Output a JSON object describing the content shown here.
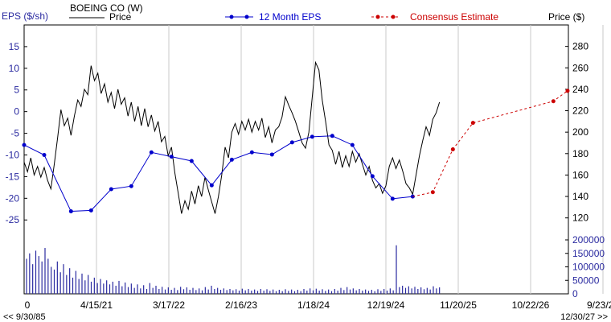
{
  "chart_data": {
    "type": "line",
    "title": "BOEING CO (W)",
    "legend": {
      "price_name": "Price",
      "eps_name": "12 Month EPS",
      "estimate_name": "Consensus Estimate",
      "position": "top"
    },
    "left_axis_label": "EPS ($/sh)",
    "right_axis_label": "Price ($)",
    "left_ticks": [
      "15",
      "10",
      "5",
      "0",
      "-5",
      "-10",
      "-15",
      "-20",
      "-25"
    ],
    "left_range": [
      -27,
      20
    ],
    "right_ticks": [
      "280",
      "260",
      "240",
      "220",
      "200",
      "180",
      "160",
      "140",
      "120"
    ],
    "right_range": [
      110,
      300
    ],
    "volume_ticks": [
      "200000",
      "150000",
      "100000",
      "50000",
      "0"
    ],
    "volume_range": [
      0,
      200000
    ],
    "x_ticks": [
      "0",
      "4/15/21",
      "3/17/22",
      "2/16/23",
      "1/18/24",
      "12/19/24",
      "11/20/25",
      "10/22/26",
      "9/23/27"
    ],
    "x_range_months": [
      0,
      81
    ],
    "x_start_label": "<< 9/30/85",
    "x_end_label": "12/30/27 >>",
    "colors": {
      "price": "#000000",
      "eps": "#0000cc",
      "estimate": "#cc0000",
      "volume": "#2a2aa0",
      "grid": "#c8c8c8"
    },
    "eps_series": {
      "name": "12 Month EPS",
      "points": [
        {
          "x": 0,
          "y": -7.7
        },
        {
          "x": 3,
          "y": -10.0
        },
        {
          "x": 7,
          "y": -23.0
        },
        {
          "x": 10,
          "y": -22.8
        },
        {
          "x": 13,
          "y": -17.9
        },
        {
          "x": 16,
          "y": -17.2
        },
        {
          "x": 19,
          "y": -9.4
        },
        {
          "x": 22,
          "y": -10.4
        },
        {
          "x": 25,
          "y": -11.4
        },
        {
          "x": 28,
          "y": -17.0
        },
        {
          "x": 31,
          "y": -11.1
        },
        {
          "x": 34,
          "y": -9.4
        },
        {
          "x": 37,
          "y": -9.9
        },
        {
          "x": 40,
          "y": -7.1
        },
        {
          "x": 43,
          "y": -5.8
        },
        {
          "x": 46,
          "y": -5.6
        },
        {
          "x": 49,
          "y": -7.7
        },
        {
          "x": 52,
          "y": -14.9
        },
        {
          "x": 55,
          "y": -20.1
        },
        {
          "x": 58,
          "y": -19.6
        }
      ]
    },
    "estimate_series": {
      "name": "Consensus Estimate",
      "points": [
        {
          "x": 58,
          "y": -19.6
        },
        {
          "x": 61,
          "y": -18.6
        },
        {
          "x": 64,
          "y": -8.7
        },
        {
          "x": 67,
          "y": -2.6
        },
        {
          "x": 79,
          "y": 2.4
        },
        {
          "x": 91,
          "y": 4.8
        }
      ]
    },
    "price_series": {
      "name": "Price",
      "points": [
        {
          "x": 0,
          "y": 172
        },
        {
          "x": 0.5,
          "y": 163
        },
        {
          "x": 1,
          "y": 176
        },
        {
          "x": 1.5,
          "y": 160
        },
        {
          "x": 2,
          "y": 168
        },
        {
          "x": 2.5,
          "y": 158
        },
        {
          "x": 3,
          "y": 167
        },
        {
          "x": 3.5,
          "y": 155
        },
        {
          "x": 4,
          "y": 147
        },
        {
          "x": 4.5,
          "y": 170
        },
        {
          "x": 5,
          "y": 195
        },
        {
          "x": 5.5,
          "y": 221
        },
        {
          "x": 6,
          "y": 206
        },
        {
          "x": 6.5,
          "y": 213
        },
        {
          "x": 7,
          "y": 197
        },
        {
          "x": 7.5,
          "y": 215
        },
        {
          "x": 8,
          "y": 230
        },
        {
          "x": 8.5,
          "y": 224
        },
        {
          "x": 9,
          "y": 240
        },
        {
          "x": 9.5,
          "y": 235
        },
        {
          "x": 10,
          "y": 262
        },
        {
          "x": 10.5,
          "y": 248
        },
        {
          "x": 11,
          "y": 255
        },
        {
          "x": 11.5,
          "y": 236
        },
        {
          "x": 12,
          "y": 245
        },
        {
          "x": 12.5,
          "y": 228
        },
        {
          "x": 13,
          "y": 237
        },
        {
          "x": 13.5,
          "y": 222
        },
        {
          "x": 14,
          "y": 240
        },
        {
          "x": 14.5,
          "y": 226
        },
        {
          "x": 15,
          "y": 232
        },
        {
          "x": 15.5,
          "y": 215
        },
        {
          "x": 16,
          "y": 228
        },
        {
          "x": 16.5,
          "y": 210
        },
        {
          "x": 17,
          "y": 224
        },
        {
          "x": 17.5,
          "y": 206
        },
        {
          "x": 18,
          "y": 222
        },
        {
          "x": 18.5,
          "y": 205
        },
        {
          "x": 19,
          "y": 216
        },
        {
          "x": 19.5,
          "y": 201
        },
        {
          "x": 20,
          "y": 210
        },
        {
          "x": 20.5,
          "y": 191
        },
        {
          "x": 21,
          "y": 196
        },
        {
          "x": 21.5,
          "y": 178
        },
        {
          "x": 22,
          "y": 186
        },
        {
          "x": 22.5,
          "y": 162
        },
        {
          "x": 23,
          "y": 143
        },
        {
          "x": 23.5,
          "y": 124
        },
        {
          "x": 24,
          "y": 136
        },
        {
          "x": 24.5,
          "y": 128
        },
        {
          "x": 25,
          "y": 145
        },
        {
          "x": 25.5,
          "y": 133
        },
        {
          "x": 26,
          "y": 150
        },
        {
          "x": 26.5,
          "y": 140
        },
        {
          "x": 27,
          "y": 158
        },
        {
          "x": 27.5,
          "y": 146
        },
        {
          "x": 28,
          "y": 135
        },
        {
          "x": 28.5,
          "y": 124
        },
        {
          "x": 29,
          "y": 140
        },
        {
          "x": 29.5,
          "y": 160
        },
        {
          "x": 30,
          "y": 186
        },
        {
          "x": 30.5,
          "y": 176
        },
        {
          "x": 31,
          "y": 200
        },
        {
          "x": 31.5,
          "y": 208
        },
        {
          "x": 32,
          "y": 198
        },
        {
          "x": 32.5,
          "y": 210
        },
        {
          "x": 33,
          "y": 202
        },
        {
          "x": 33.5,
          "y": 212
        },
        {
          "x": 34,
          "y": 200
        },
        {
          "x": 34.5,
          "y": 210
        },
        {
          "x": 35,
          "y": 202
        },
        {
          "x": 35.5,
          "y": 213
        },
        {
          "x": 36,
          "y": 195
        },
        {
          "x": 36.5,
          "y": 205
        },
        {
          "x": 37,
          "y": 190
        },
        {
          "x": 37.5,
          "y": 202
        },
        {
          "x": 38,
          "y": 205
        },
        {
          "x": 38.5,
          "y": 214
        },
        {
          "x": 39,
          "y": 233
        },
        {
          "x": 39.5,
          "y": 225
        },
        {
          "x": 40,
          "y": 218
        },
        {
          "x": 40.5,
          "y": 210
        },
        {
          "x": 41,
          "y": 200
        },
        {
          "x": 41.5,
          "y": 190
        },
        {
          "x": 42,
          "y": 185
        },
        {
          "x": 42.5,
          "y": 200
        },
        {
          "x": 43,
          "y": 232
        },
        {
          "x": 43.5,
          "y": 265
        },
        {
          "x": 44,
          "y": 258
        },
        {
          "x": 44.5,
          "y": 230
        },
        {
          "x": 45,
          "y": 210
        },
        {
          "x": 45.5,
          "y": 188
        },
        {
          "x": 46,
          "y": 183
        },
        {
          "x": 46.5,
          "y": 170
        },
        {
          "x": 47,
          "y": 182
        },
        {
          "x": 47.5,
          "y": 167
        },
        {
          "x": 48,
          "y": 178
        },
        {
          "x": 48.5,
          "y": 168
        },
        {
          "x": 49,
          "y": 182
        },
        {
          "x": 49.5,
          "y": 172
        },
        {
          "x": 50,
          "y": 180
        },
        {
          "x": 50.5,
          "y": 170
        },
        {
          "x": 51,
          "y": 160
        },
        {
          "x": 51.5,
          "y": 168
        },
        {
          "x": 52,
          "y": 155
        },
        {
          "x": 52.5,
          "y": 148
        },
        {
          "x": 53,
          "y": 152
        },
        {
          "x": 53.5,
          "y": 143
        },
        {
          "x": 54,
          "y": 150
        },
        {
          "x": 54.5,
          "y": 168
        },
        {
          "x": 55,
          "y": 176
        },
        {
          "x": 55.5,
          "y": 166
        },
        {
          "x": 56,
          "y": 174
        },
        {
          "x": 56.5,
          "y": 164
        },
        {
          "x": 57,
          "y": 152
        },
        {
          "x": 57.5,
          "y": 148
        },
        {
          "x": 58,
          "y": 142
        },
        {
          "x": 58.5,
          "y": 160
        },
        {
          "x": 59,
          "y": 178
        },
        {
          "x": 59.5,
          "y": 192
        },
        {
          "x": 60,
          "y": 205
        },
        {
          "x": 60.5,
          "y": 197
        },
        {
          "x": 61,
          "y": 212
        },
        {
          "x": 61.5,
          "y": 218
        },
        {
          "x": 62,
          "y": 228
        }
      ]
    },
    "volume": [
      130000,
      150000,
      110000,
      160000,
      140000,
      120000,
      170000,
      130000,
      100000,
      90000,
      120000,
      80000,
      110000,
      70000,
      95000,
      60000,
      85000,
      55000,
      75000,
      50000,
      70000,
      45000,
      60000,
      40000,
      55000,
      38000,
      50000,
      35000,
      45000,
      30000,
      48000,
      28000,
      42000,
      25000,
      38000,
      22000,
      35000,
      20000,
      32000,
      18000,
      40000,
      22000,
      30000,
      18000,
      26000,
      16000,
      24000,
      15000,
      22000,
      14000,
      26000,
      17000,
      24000,
      15000,
      22000,
      14000,
      20000,
      13000,
      25000,
      16000,
      30000,
      18000,
      22000,
      15000,
      20000,
      14000,
      18000,
      13000,
      17000,
      12000,
      19000,
      13000,
      18000,
      12000,
      16000,
      11000,
      18000,
      12000,
      17000,
      11000,
      16000,
      10000,
      15000,
      10000,
      17000,
      11000,
      16000,
      10000,
      15000,
      10000,
      18000,
      12000,
      20000,
      13000,
      19000,
      12000,
      17000,
      11000,
      16000,
      10000,
      18000,
      12000,
      22000,
      14000,
      25000,
      16000,
      20000,
      13000,
      18000,
      12000,
      16000,
      11000,
      15000,
      10000,
      17000,
      11000,
      18000,
      12000,
      20000,
      13000,
      180000,
      25000,
      30000,
      22000,
      28000,
      20000,
      26000,
      18000,
      24000,
      17000,
      22000,
      16000,
      28000,
      20000,
      24000
    ]
  }
}
